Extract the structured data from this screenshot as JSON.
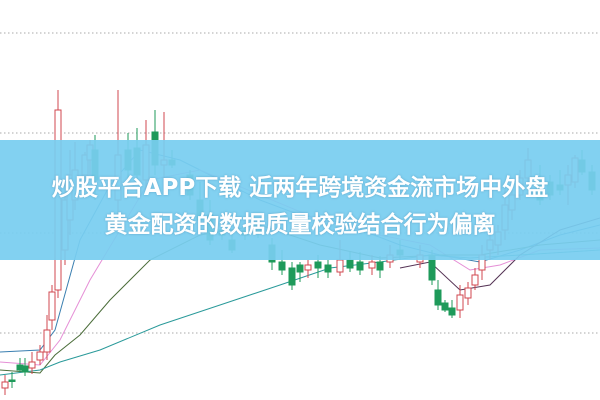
{
  "headline": {
    "line1": "炒股平台APP下载 近两年跨境资金流市场中外盘",
    "line2": "黄金配资的数据质量校验结合行为偏离"
  },
  "colors": {
    "band": "#7ccdf0",
    "up_candle": "#d0474f",
    "down_candle": "#1e9a5a",
    "grid": "#aaaaaa"
  }
}
